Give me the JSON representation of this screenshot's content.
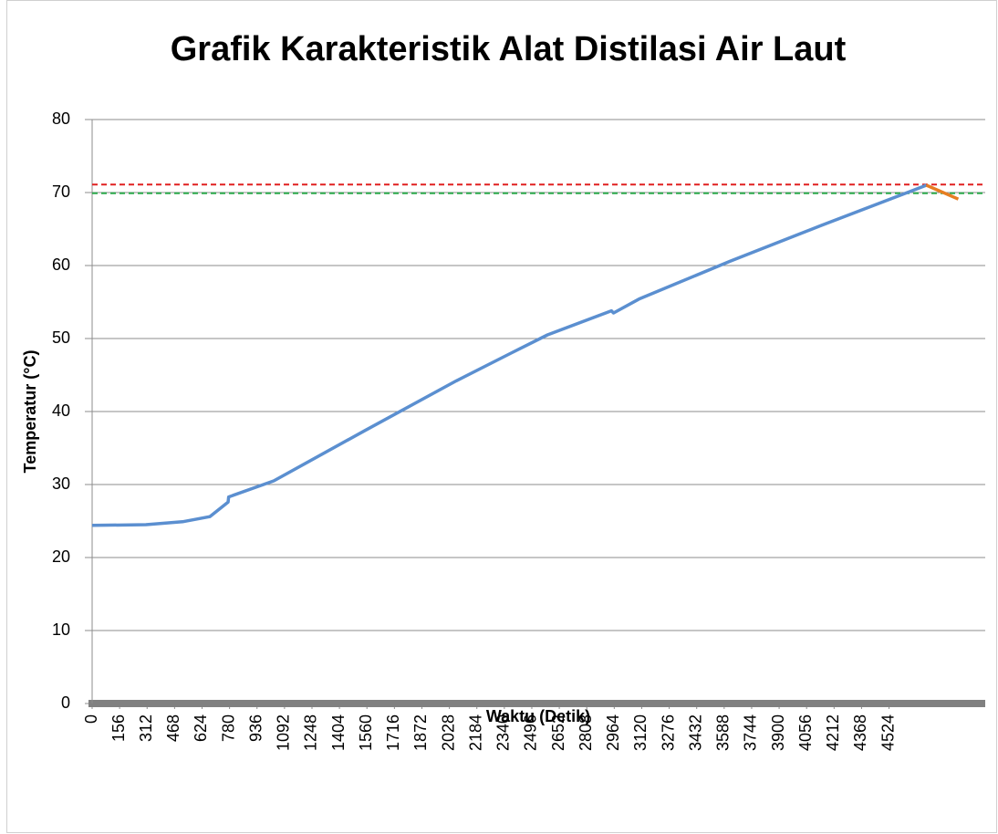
{
  "chart_data": {
    "type": "line",
    "title": "Grafik Karakteristik Alat Distilasi Air Laut",
    "x_label": "Waktu (Detik)",
    "y_label": "Temperatur (°C)",
    "xlim": [
      0,
      5070
    ],
    "ylim": [
      0,
      80
    ],
    "xticks": [
      0,
      156,
      312,
      468,
      624,
      780,
      936,
      1092,
      1248,
      1404,
      1560,
      1716,
      1872,
      2028,
      2184,
      2340,
      2496,
      2652,
      2808,
      2964,
      3120,
      3276,
      3432,
      3588,
      3744,
      3900,
      4056,
      4212,
      4368,
      4524
    ],
    "yticks": [
      0,
      10,
      20,
      30,
      40,
      50,
      60,
      70,
      80
    ],
    "grid": true,
    "series": [
      {
        "color": "#5b8fd0",
        "x": [
          0,
          305,
          513,
          668,
          772,
          775,
          1031,
          1549,
          2067,
          2378,
          2585,
          2948,
          2960,
          3104,
          3622,
          4140,
          4606,
          4736
        ],
        "values": [
          24.4,
          24.5,
          24.9,
          25.6,
          27.6,
          28.3,
          30.5,
          37.4,
          44.2,
          48.0,
          50.5,
          53.8,
          53.5,
          55.4,
          60.6,
          65.5,
          69.8,
          71.0
        ]
      },
      {
        "color": "#e67e22",
        "x": [
          4736,
          4917
        ],
        "values": [
          71.0,
          69.1
        ]
      }
    ],
    "reference_lines": [
      {
        "value": 71.1,
        "color": "#e02020"
      },
      {
        "value": 69.9,
        "color": "#2aa84a"
      }
    ]
  }
}
